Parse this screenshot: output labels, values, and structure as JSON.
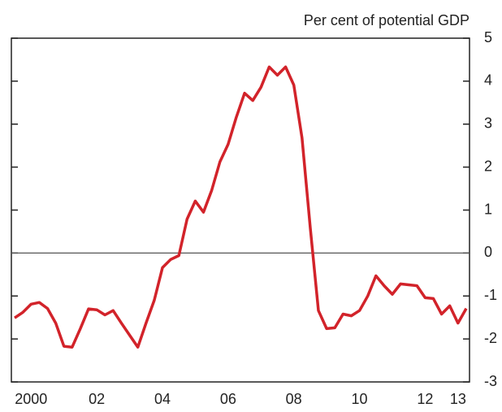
{
  "chart_data": {
    "type": "line",
    "axis_label": "Per cent of potential GDP",
    "x": [
      2000,
      2000.25,
      2000.5,
      2000.75,
      2001,
      2001.25,
      2001.5,
      2001.75,
      2002,
      2002.25,
      2002.5,
      2002.75,
      2003,
      2003.25,
      2003.5,
      2003.75,
      2004,
      2004.25,
      2004.5,
      2004.75,
      2005,
      2005.25,
      2005.5,
      2005.75,
      2006,
      2006.25,
      2006.5,
      2006.75,
      2007,
      2007.25,
      2007.5,
      2007.75,
      2008,
      2008.25,
      2008.5,
      2008.75,
      2009,
      2009.25,
      2009.5,
      2009.75,
      2010,
      2010.25,
      2010.5,
      2010.75,
      2011,
      2011.25,
      2011.5,
      2011.75,
      2012,
      2012.25,
      2012.5,
      2012.75,
      2013,
      2013.25,
      2013.5,
      2013.75
    ],
    "series": [
      {
        "color": "#d2232a",
        "values": [
          -1.51,
          -1.38,
          -1.19,
          -1.15,
          -1.29,
          -1.63,
          -2.17,
          -2.19,
          -1.76,
          -1.3,
          -1.32,
          -1.44,
          -1.34,
          -1.63,
          -1.91,
          -2.19,
          -1.63,
          -1.1,
          -0.34,
          -0.15,
          -0.06,
          0.79,
          1.21,
          0.95,
          1.46,
          2.12,
          2.53,
          3.16,
          3.72,
          3.55,
          3.86,
          4.33,
          4.14,
          4.33,
          3.91,
          2.68,
          0.6,
          -1.34,
          -1.76,
          -1.74,
          -1.42,
          -1.46,
          -1.34,
          -1.0,
          -0.53,
          -0.76,
          -0.96,
          -0.72,
          -0.74,
          -0.76,
          -1.04,
          -1.06,
          -1.42,
          -1.23,
          -1.63,
          -1.29
        ]
      }
    ],
    "xlim": [
      1999.9,
      2013.85
    ],
    "xticks": [
      {
        "value": 2000.5,
        "label": "2000"
      },
      {
        "value": 2002.5,
        "label": "02"
      },
      {
        "value": 2004.5,
        "label": "04"
      },
      {
        "value": 2006.5,
        "label": "06"
      },
      {
        "value": 2008.5,
        "label": "08"
      },
      {
        "value": 2010.5,
        "label": "10"
      },
      {
        "value": 2012.5,
        "label": "12"
      },
      {
        "value": 2013.5,
        "label": "13"
      }
    ],
    "ylim": [
      -3,
      5
    ],
    "yticks": [
      -3,
      -2,
      -1,
      0,
      1,
      2,
      3,
      4,
      5
    ]
  }
}
